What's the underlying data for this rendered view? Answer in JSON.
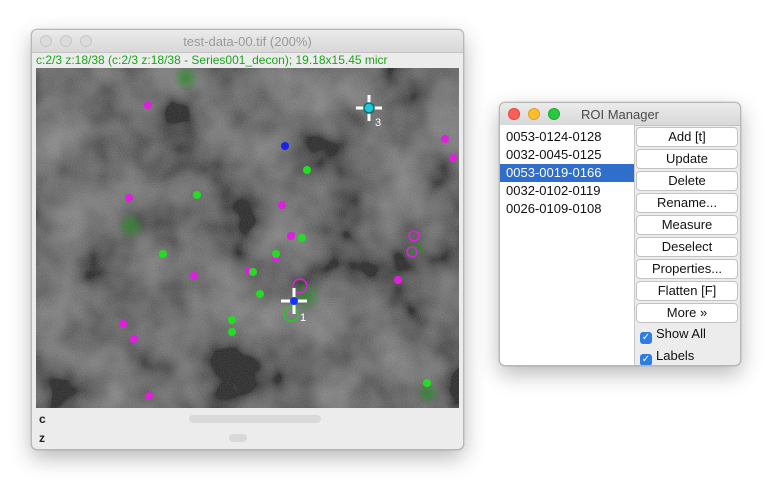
{
  "image_window": {
    "title": "test-data-00.tif (200%)",
    "subtitle": "c:2/3 z:18/38 (c:2/3 z:18/38 - Series001_decon); 19.18x15.45 micr",
    "sliders": [
      {
        "label": "c",
        "position_fraction": 0.5
      },
      {
        "label": "z",
        "position_fraction": 0.47
      }
    ],
    "canvas": {
      "markers": [
        {
          "id": "1",
          "label": "1",
          "color": "#1535ff",
          "ring": "#22cc22"
        },
        {
          "id": "3",
          "label": "3",
          "color": "#1ec8d8",
          "ring": "#ffffff"
        }
      ]
    }
  },
  "roi_manager": {
    "title": "ROI Manager",
    "rois": [
      {
        "label": "0053-0124-0128",
        "selected": false
      },
      {
        "label": "0032-0045-0125",
        "selected": false
      },
      {
        "label": "0053-0019-0166",
        "selected": true
      },
      {
        "label": "0032-0102-0119",
        "selected": false
      },
      {
        "label": "0026-0109-0108",
        "selected": false
      }
    ],
    "buttons": [
      "Add [t]",
      "Update",
      "Delete",
      "Rename...",
      "Measure",
      "Deselect",
      "Properties...",
      "Flatten [F]",
      "More »"
    ],
    "checkboxes": [
      {
        "label": "Show All",
        "checked": true
      },
      {
        "label": "Labels",
        "checked": true
      }
    ]
  },
  "colors": {
    "magenta": "#e01ee0",
    "green": "#22dd22",
    "blue": "#1a22ee",
    "selection": "#2f6ec9"
  }
}
